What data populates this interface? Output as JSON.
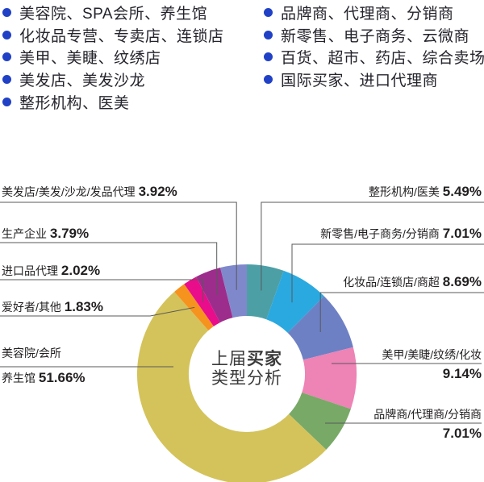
{
  "legend": {
    "bullet_color": "#2041c6",
    "left": [
      "美容院、SPA会所、养生馆",
      "化妆品专营、专卖店、连锁店",
      "美甲、美睫、纹绣店",
      "美发店、美发沙龙",
      "整形机构、医美"
    ],
    "right": [
      "品牌商、代理商、分销商",
      "新零售、电子商务、云微商",
      "百货、超市、药店、综合卖场",
      "国际买家、进口代理商"
    ]
  },
  "chart_data": {
    "type": "pie",
    "donut": true,
    "start_angle_deg": 0,
    "direction": "clockwise",
    "leader_line_color": "#58595b",
    "center": {
      "line1_regular": "上届",
      "line1_bold": "买家",
      "line2": "类型分析"
    },
    "series": [
      {
        "label": "整形机构/医美",
        "value": 5.49,
        "color": "#4d9fa6"
      },
      {
        "label": "新零售/电子商务/分销商",
        "value": 7.01,
        "color": "#2aa9e0"
      },
      {
        "label": "化妆品/连锁店/商超",
        "value": 8.69,
        "color": "#6e80c4"
      },
      {
        "label": "美甲/美睫/纹绣/化妆",
        "value": 9.14,
        "color": "#ee83b5"
      },
      {
        "label": "品牌商/代理商/分销商",
        "value": 7.01,
        "color": "#78a967"
      },
      {
        "label": "美容院/会所养生馆",
        "value": 51.66,
        "color": "#d4c35b"
      },
      {
        "label": "爱好者/其他",
        "value": 1.83,
        "color": "#f6921e"
      },
      {
        "label": "进口品代理",
        "value": 2.02,
        "color": "#e90c8b"
      },
      {
        "label": "生产企业",
        "value": 3.79,
        "color": "#9d2d8c"
      },
      {
        "label": "美发店/美发/沙龙/发品代理",
        "value": 3.92,
        "color": "#7f88cb"
      }
    ]
  },
  "callouts": {
    "left": [
      {
        "name": "美发店/美发/沙龙/发品代理 ",
        "pct": "3.92%"
      },
      {
        "name": "生产企业 ",
        "pct": "3.79%"
      },
      {
        "name": "进口品代理 ",
        "pct": "2.02%"
      },
      {
        "name": "爱好者/其他 ",
        "pct": "1.83%"
      },
      {
        "line1": "美容院/会所",
        "line2": "养生馆 ",
        "pct": "51.66%"
      }
    ],
    "right": [
      {
        "name": "整形机构/医美 ",
        "pct": "5.49%"
      },
      {
        "name": "新零售/电子商务/分销商 ",
        "pct": "7.01%"
      },
      {
        "name": "化妆品/连锁店/商超 ",
        "pct": "8.69%"
      },
      {
        "line1": "美甲/美睫/纹绣/化妆",
        "pct": "9.14%"
      },
      {
        "line1": "品牌商/代理商/分销商",
        "pct": "7.01%"
      }
    ]
  }
}
